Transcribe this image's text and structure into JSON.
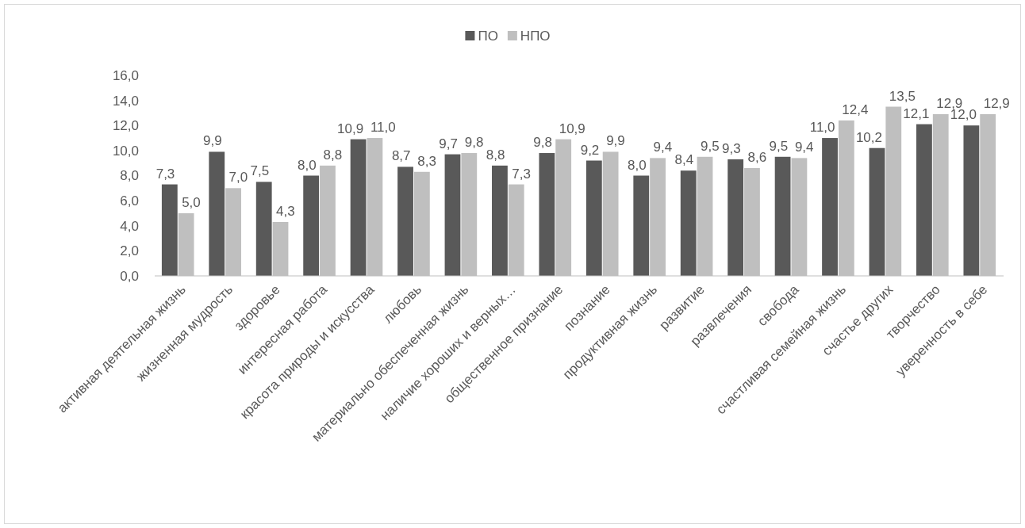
{
  "chart_data": {
    "type": "bar",
    "categories": [
      "активная деятельная жизнь",
      "жизненная мудрость",
      "здоровье",
      "интересная работа",
      "красота природы и искусства",
      "любовь",
      "материально обеспеченная жизнь",
      "наличие хороших и верных…",
      "общественное признание",
      "познание",
      "продуктивная жизнь",
      "развитие",
      "развлечения",
      "свобода",
      "счастливая семейная жизнь",
      "счастье других",
      "творчество",
      "уверенность в себе"
    ],
    "series": [
      {
        "name": "ПО",
        "color": "#595959",
        "values": [
          7.3,
          9.9,
          7.5,
          8.0,
          10.9,
          8.7,
          9.7,
          8.8,
          9.8,
          9.2,
          8.0,
          8.4,
          9.3,
          9.5,
          11.0,
          10.2,
          12.1,
          12.0
        ],
        "value_labels": [
          "7,3",
          "9,9",
          "7,5",
          "8,0",
          "10,9",
          "8,7",
          "9,7",
          "8,8",
          "9,8",
          "9,2",
          "8,0",
          "8,4",
          "9,3",
          "9,5",
          "11,0",
          "10,2",
          "12,1",
          "12,0"
        ]
      },
      {
        "name": "НПО",
        "color": "#bfbfbf",
        "values": [
          5.0,
          7.0,
          4.3,
          8.8,
          11.0,
          8.3,
          9.8,
          7.3,
          10.9,
          9.9,
          9.4,
          9.5,
          8.6,
          9.4,
          12.4,
          13.5,
          12.9,
          12.9
        ],
        "value_labels": [
          "5,0",
          "7,0",
          "4,3",
          "8,8",
          "11,0",
          "8,3",
          "9,8",
          "7,3",
          "10,9",
          "9,9",
          "9,4",
          "9,5",
          "8,6",
          "9,4",
          "12,4",
          "13,5",
          "12,9",
          "12,9"
        ]
      }
    ],
    "ylim": [
      0,
      16
    ],
    "yticks": [
      {
        "value": 0,
        "label": "0,0"
      },
      {
        "value": 2,
        "label": "2,0"
      },
      {
        "value": 4,
        "label": "4,0"
      },
      {
        "value": 6,
        "label": "6,0"
      },
      {
        "value": 8,
        "label": "8,0"
      },
      {
        "value": 10,
        "label": "10,0"
      },
      {
        "value": 12,
        "label": "12,0"
      },
      {
        "value": 14,
        "label": "14,0"
      },
      {
        "value": 16,
        "label": "16,0"
      }
    ],
    "legend": "top"
  }
}
